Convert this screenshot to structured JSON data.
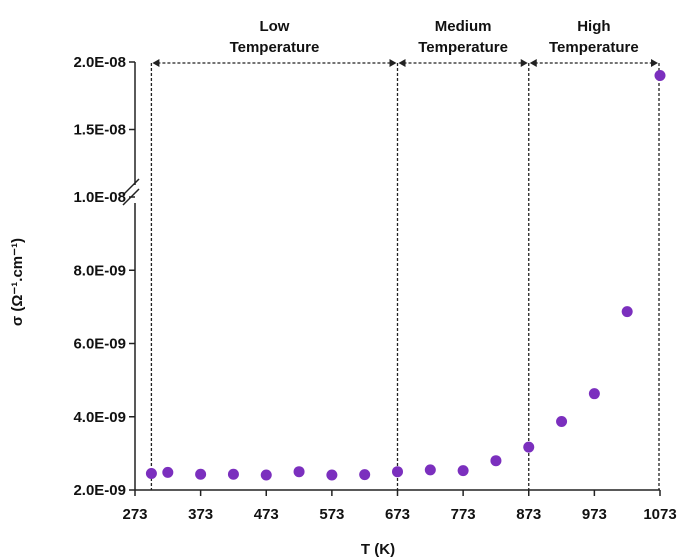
{
  "chart_data": {
    "type": "scatter",
    "xlabel": "T (K)",
    "ylabel": "σ (Ω⁻¹.cm⁻¹)",
    "xlim": [
      273,
      1073
    ],
    "x_ticks": [
      273,
      373,
      473,
      573,
      673,
      773,
      873,
      973,
      1073
    ],
    "y_ticks": [
      {
        "value": 2e-09,
        "label": "2.0E-09"
      },
      {
        "value": 4e-09,
        "label": "4.0E-09"
      },
      {
        "value": 6e-09,
        "label": "6.0E-09"
      },
      {
        "value": 8e-09,
        "label": "8.0E-09"
      },
      {
        "value": 1e-08,
        "label": "1.0E-08"
      },
      {
        "value": 1.5e-08,
        "label": "1.5E-08"
      },
      {
        "value": 2e-08,
        "label": "2.0E-08"
      }
    ],
    "y_axis_break": {
      "lower_range": [
        2e-09,
        1e-08
      ],
      "upper_range": [
        1e-08,
        2e-08
      ]
    },
    "color": "#7b2fbe",
    "points": [
      {
        "x": 298,
        "y": 2.45e-09
      },
      {
        "x": 323,
        "y": 2.48e-09
      },
      {
        "x": 373,
        "y": 2.43e-09
      },
      {
        "x": 423,
        "y": 2.43e-09
      },
      {
        "x": 473,
        "y": 2.41e-09
      },
      {
        "x": 523,
        "y": 2.5e-09
      },
      {
        "x": 573,
        "y": 2.41e-09
      },
      {
        "x": 623,
        "y": 2.42e-09
      },
      {
        "x": 673,
        "y": 2.5e-09
      },
      {
        "x": 723,
        "y": 2.55e-09
      },
      {
        "x": 773,
        "y": 2.53e-09
      },
      {
        "x": 823,
        "y": 2.8e-09
      },
      {
        "x": 873,
        "y": 3.17e-09
      },
      {
        "x": 923,
        "y": 3.87e-09
      },
      {
        "x": 973,
        "y": 4.63e-09
      },
      {
        "x": 1023,
        "y": 6.87e-09
      },
      {
        "x": 1073,
        "y": 1.9e-08
      }
    ],
    "region_boundaries": [
      298,
      673,
      873,
      1073
    ],
    "regions": [
      {
        "lines": [
          "Low",
          "Temperature"
        ],
        "from": 298,
        "to": 673
      },
      {
        "lines": [
          "Medium",
          "Temperature"
        ],
        "from": 673,
        "to": 873
      },
      {
        "lines": [
          "High",
          "Temperature"
        ],
        "from": 873,
        "to": 1073
      }
    ]
  }
}
